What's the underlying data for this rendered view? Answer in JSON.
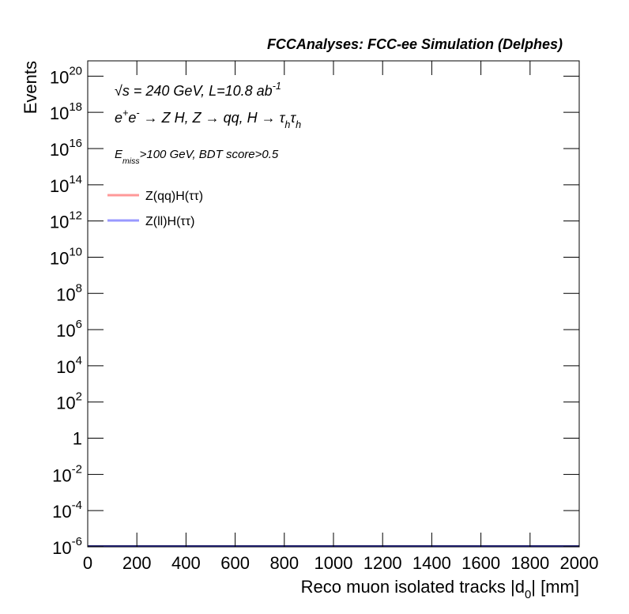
{
  "chart_data": {
    "type": "line",
    "title": "FCCAnalyses: FCC-ee Simulation (Delphes)",
    "xlabel": "Reco muon isolated tracks |d",
    "xlabel_sub": "0",
    "xlabel_end": "| [mm]",
    "ylabel": "Events",
    "log_y": true,
    "xlim": [
      0,
      2000
    ],
    "xticks": [
      0,
      200,
      400,
      600,
      800,
      1000,
      1200,
      1400,
      1600,
      1800,
      2000
    ],
    "ylim": [
      1e-06,
      7e+20
    ],
    "yticks": [
      {
        "value": 1e-06,
        "label": "10",
        "exponent": "-6"
      },
      {
        "value": 0.0001,
        "label": "10",
        "exponent": "-4"
      },
      {
        "value": 0.01,
        "label": "10",
        "exponent": "-2"
      },
      1,
      {
        "value": 100,
        "label": "10",
        "exponent": "2"
      },
      {
        "value": 10000,
        "label": "10",
        "exponent": "4"
      },
      {
        "value": 1000000.0,
        "label": "10",
        "exponent": "6"
      },
      {
        "value": 100000000.0,
        "label": "10",
        "exponent": "8"
      },
      {
        "value": 10000000000.0,
        "label": "10",
        "exponent": "10"
      },
      {
        "value": 1000000000000.0,
        "label": "10",
        "exponent": "12"
      },
      {
        "value": 100000000000000.0,
        "label": "10",
        "exponent": "14"
      },
      {
        "value": 1e+16,
        "label": "10",
        "exponent": "16"
      },
      {
        "value": 1e+18,
        "label": "10",
        "exponent": "18"
      },
      {
        "value": 1e+20,
        "label": "10",
        "exponent": "20"
      }
    ],
    "annotations": [
      {
        "parts": [
          {
            "text": "√s = 240 GeV, L=10.8 ab"
          },
          {
            "text": "-1",
            "sup": true
          }
        ]
      },
      {
        "parts": [
          {
            "text": "e"
          },
          {
            "text": "+",
            "sup": true
          },
          {
            "text": "e"
          },
          {
            "text": "-",
            "sup": true
          },
          {
            "text": " → Z H, Z  → qq, H  → τ"
          },
          {
            "text": "h",
            "sub": true
          },
          {
            "text": "τ"
          },
          {
            "text": "h",
            "sub": true
          }
        ]
      },
      {
        "parts": [
          {
            "text": "E"
          },
          {
            "text": "miss",
            "sub": true
          },
          {
            "text": ">100 GeV, BDT score>0.5"
          }
        ]
      }
    ],
    "series": [
      {
        "name": "Z(qq)H(ττ)",
        "color": "#ff9999"
      },
      {
        "name": "Z(ll)H(ττ)",
        "color": "#9999ff"
      }
    ]
  }
}
